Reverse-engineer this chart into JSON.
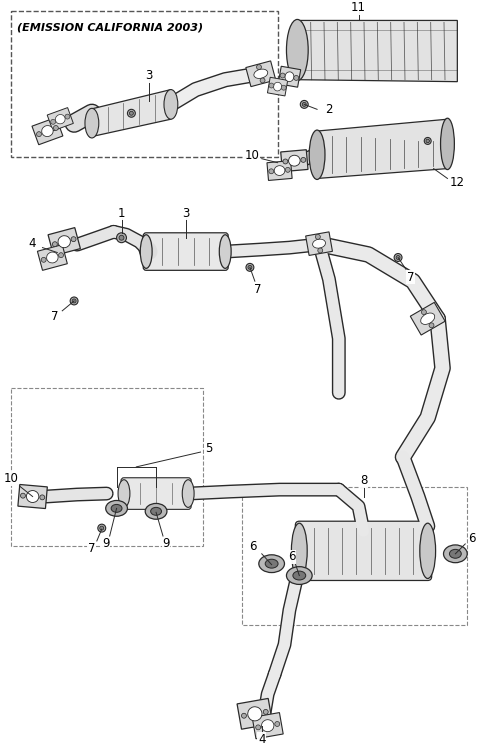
{
  "bg_color": "#ffffff",
  "line_color": "#2a2a2a",
  "label_color": "#000000",
  "title": "(EMISSION CALIFORNIA 2003)",
  "fig_width": 4.8,
  "fig_height": 7.46,
  "dpi": 100
}
